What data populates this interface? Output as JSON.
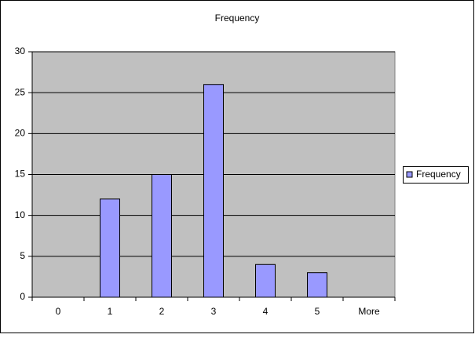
{
  "chart_data": {
    "type": "bar",
    "title": "Frequency",
    "categories": [
      "0",
      "1",
      "2",
      "3",
      "4",
      "5",
      "More"
    ],
    "series": [
      {
        "name": "Frequency",
        "color": "#9999ff",
        "values": [
          0,
          12,
          15,
          26,
          4,
          3,
          0
        ]
      }
    ],
    "ylim": [
      0,
      30
    ],
    "yticks": [
      0,
      5,
      10,
      15,
      20,
      25,
      30
    ],
    "grid": true,
    "legend": "right"
  }
}
